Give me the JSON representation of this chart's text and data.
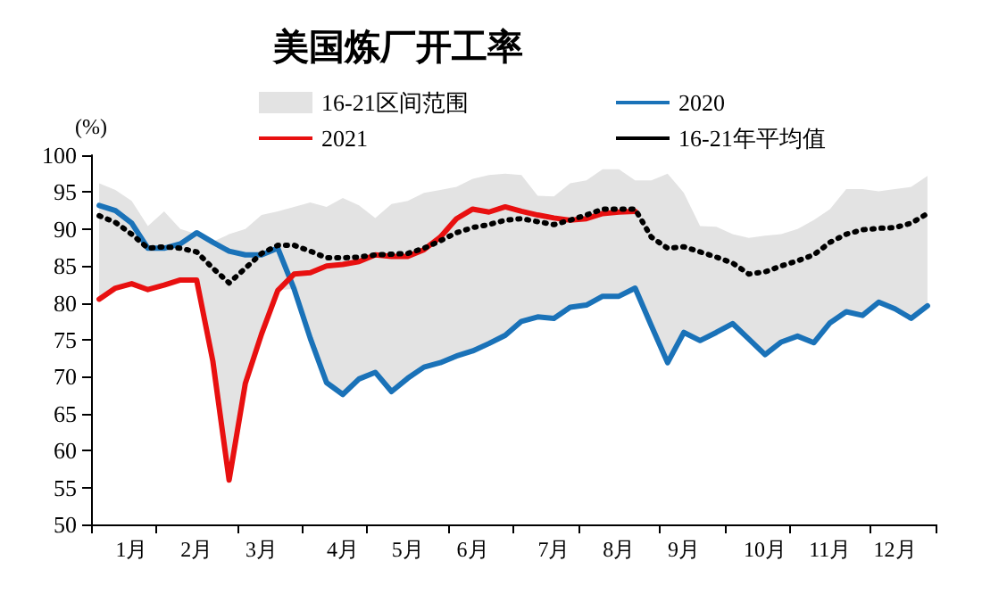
{
  "chart_data": {
    "type": "line",
    "title": "美国炼厂开工率",
    "ylabel": "(%)",
    "categories": [
      null,
      null,
      "1月",
      null,
      null,
      null,
      "2月",
      null,
      null,
      null,
      "3月",
      null,
      null,
      null,
      null,
      "4月",
      null,
      null,
      null,
      "5月",
      null,
      null,
      null,
      "6月",
      null,
      null,
      null,
      null,
      "7月",
      null,
      null,
      null,
      "8月",
      null,
      null,
      null,
      "9月",
      null,
      null,
      null,
      null,
      "10月",
      null,
      null,
      null,
      "11月",
      null,
      null,
      null,
      "12月",
      null,
      null
    ],
    "ylim": [
      50,
      100
    ],
    "yticks": [
      50,
      55,
      60,
      65,
      70,
      75,
      80,
      85,
      90,
      95,
      100
    ],
    "grid": false,
    "legend": "top",
    "marker": "none",
    "series": [
      {
        "name": "16-21区间范围",
        "type": "area",
        "color": "#e3e3e3",
        "values": [
          96.2,
          95.3,
          93.8,
          90.4,
          92.4,
          90,
          89.3,
          88.3,
          89.3,
          90,
          91.9,
          92.4,
          93,
          93.6,
          93,
          94.2,
          93.2,
          91.5,
          93.4,
          93.8,
          94.9,
          95.3,
          95.7,
          96.8,
          97.3,
          97.5,
          97.3,
          94.5,
          94.4,
          96.2,
          96.6,
          98.1,
          98.1,
          96.6,
          96.6,
          97.5,
          94.9,
          90.4,
          90.3,
          89.3,
          88.8,
          89.1,
          89.3,
          90,
          91.2,
          92.7,
          95.4,
          95.4,
          95.1,
          95.4,
          95.7,
          97.2
        ]
      },
      {
        "name": "2020",
        "color": "#1a72b8",
        "line_style": "solid",
        "values": [
          93.2,
          92.5,
          90.8,
          87.4,
          87.4,
          88,
          89.5,
          88.2,
          87,
          86.5,
          86.5,
          87.4,
          81.9,
          75.2,
          69.2,
          67.6,
          69.7,
          70.6,
          68,
          69.8,
          71.3,
          71.9,
          72.8,
          73.5,
          74.5,
          75.6,
          77.5,
          78.1,
          77.9,
          79.4,
          79.7,
          80.9,
          80.9,
          82,
          76.9,
          71.9,
          76,
          74.9,
          76,
          77.2,
          75.1,
          73,
          74.7,
          75.5,
          74.6,
          77.3,
          78.8,
          78.3,
          80.1,
          79.2,
          77.9,
          79.6
        ]
      },
      {
        "name": "2021",
        "color": "#e81010",
        "line_style": "solid",
        "values": [
          80.5,
          82,
          82.6,
          81.8,
          82.4,
          83.1,
          83.1,
          72.1,
          56,
          69.1,
          75.8,
          81.7,
          83.9,
          84.1,
          85,
          85.2,
          85.6,
          86.5,
          86.3,
          86.3,
          87.2,
          88.9,
          91.4,
          92.7,
          92.3,
          93,
          92.4,
          91.9,
          91.5,
          91.2,
          91.4,
          92.1,
          92.3,
          92.4,
          null,
          null,
          null,
          null,
          null,
          null,
          null,
          null,
          null,
          null,
          null,
          null,
          null,
          null,
          null,
          null,
          null,
          null
        ]
      },
      {
        "name": "16-21年平均值",
        "color": "#000000",
        "line_style": "dotted",
        "values": [
          91.8,
          90.9,
          89.3,
          87.4,
          87.6,
          87.4,
          86.9,
          84.7,
          82.7,
          84.7,
          86.7,
          87.8,
          87.8,
          87,
          86.1,
          86.1,
          86.2,
          86.5,
          86.6,
          86.7,
          87.4,
          88.4,
          89.5,
          90.2,
          90.6,
          91.2,
          91.4,
          91,
          90.6,
          91.2,
          91.9,
          92.7,
          92.7,
          92.7,
          88.9,
          87.4,
          87.6,
          86.9,
          86.2,
          85.4,
          83.9,
          84.2,
          85,
          85.7,
          86.5,
          88.2,
          89.3,
          89.9,
          90.1,
          90.2,
          90.8,
          92.1
        ]
      }
    ]
  }
}
